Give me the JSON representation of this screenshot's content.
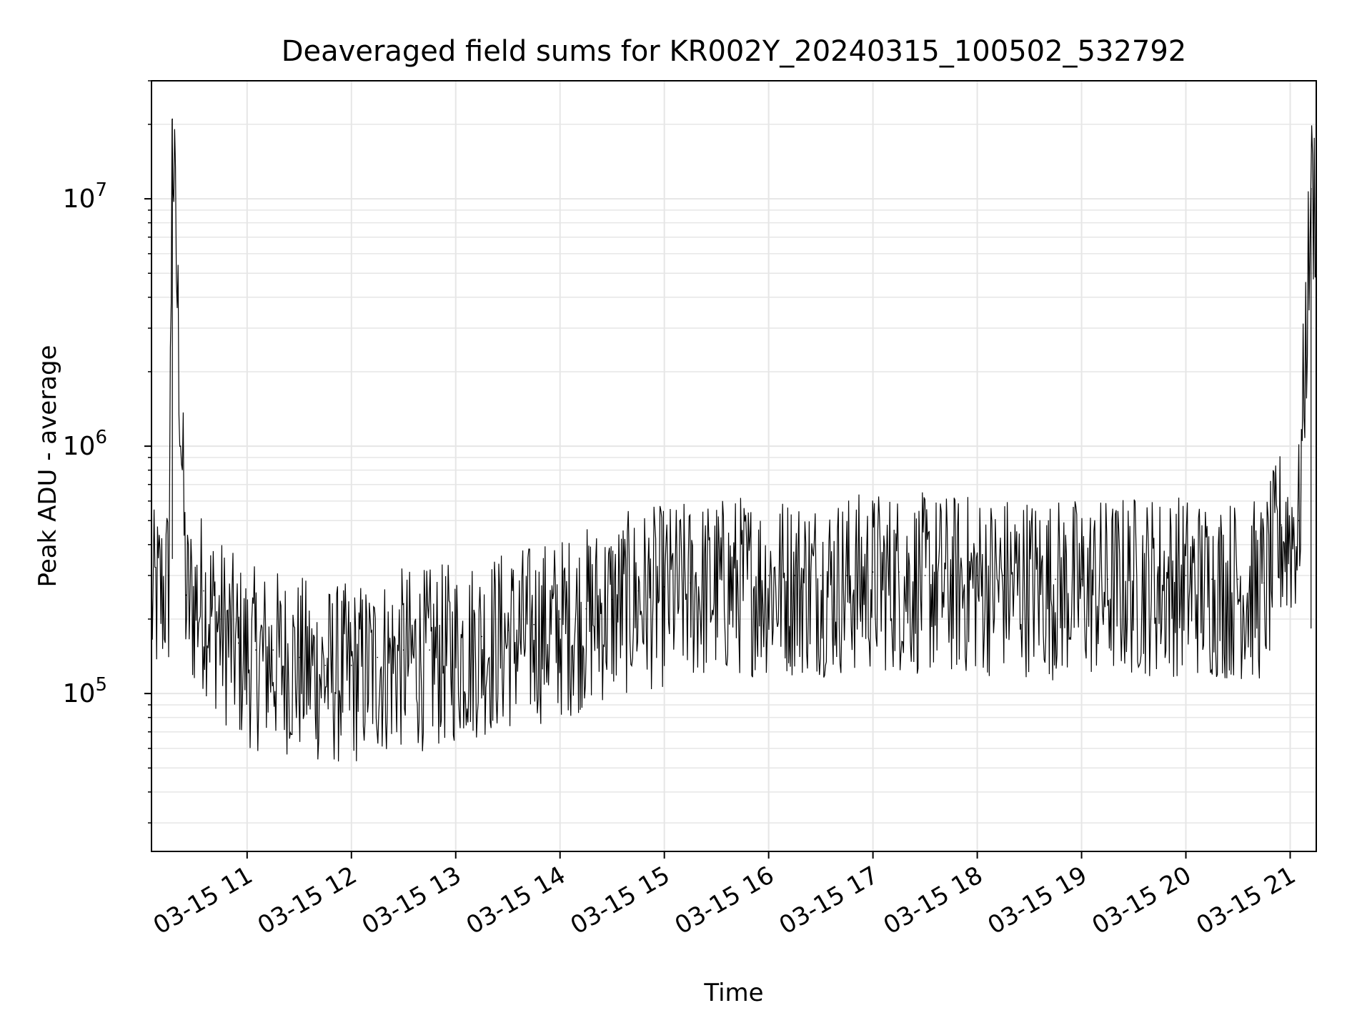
{
  "chart_data": {
    "type": "line",
    "title": "Deaveraged field sums for KR002Y_20240315_100502_532792",
    "xlabel": "Time",
    "ylabel": "Peak ADU - average",
    "yscale": "log",
    "ylim": [
      23000,
      30000000
    ],
    "xlim": [
      "2024-03-15 10:05",
      "2024-03-15 21:15"
    ],
    "xticks": [
      {
        "value": "2024-03-15 11:00",
        "label": "03-15 11"
      },
      {
        "value": "2024-03-15 12:00",
        "label": "03-15 12"
      },
      {
        "value": "2024-03-15 13:00",
        "label": "03-15 13"
      },
      {
        "value": "2024-03-15 14:00",
        "label": "03-15 14"
      },
      {
        "value": "2024-03-15 15:00",
        "label": "03-15 15"
      },
      {
        "value": "2024-03-15 16:00",
        "label": "03-15 16"
      },
      {
        "value": "2024-03-15 17:00",
        "label": "03-15 17"
      },
      {
        "value": "2024-03-15 18:00",
        "label": "03-15 18"
      },
      {
        "value": "2024-03-15 19:00",
        "label": "03-15 19"
      },
      {
        "value": "2024-03-15 20:00",
        "label": "03-15 20"
      },
      {
        "value": "2024-03-15 21:00",
        "label": "03-15 21"
      }
    ],
    "yticks": [
      {
        "value": 100000,
        "base": "10",
        "exp": "5"
      },
      {
        "value": 1000000,
        "base": "10",
        "exp": "6"
      },
      {
        "value": 10000000,
        "base": "10",
        "exp": "7"
      }
    ],
    "grid": true,
    "series_color": "#000000",
    "series": [
      {
        "x": [
          "2024-03-15 10:05",
          "2024-03-15 10:15",
          "2024-03-15 10:17",
          "2024-03-15 10:25",
          "2024-03-15 10:35",
          "2024-03-15 10:45",
          "2024-03-15 10:55",
          "2024-03-15 11:05",
          "2024-03-15 11:15",
          "2024-03-15 11:30",
          "2024-03-15 11:45",
          "2024-03-15 12:00",
          "2024-03-15 12:15",
          "2024-03-15 12:30",
          "2024-03-15 12:45",
          "2024-03-15 13:00",
          "2024-03-15 13:15",
          "2024-03-15 13:30",
          "2024-03-15 13:45",
          "2024-03-15 14:00",
          "2024-03-15 14:15",
          "2024-03-15 14:30",
          "2024-03-15 14:45",
          "2024-03-15 15:00",
          "2024-03-15 15:15",
          "2024-03-15 15:30",
          "2024-03-15 15:45",
          "2024-03-15 16:00",
          "2024-03-15 16:15",
          "2024-03-15 16:30",
          "2024-03-15 16:45",
          "2024-03-15 17:00",
          "2024-03-15 17:15",
          "2024-03-15 17:30",
          "2024-03-15 17:45",
          "2024-03-15 18:00",
          "2024-03-15 18:15",
          "2024-03-15 18:30",
          "2024-03-15 18:45",
          "2024-03-15 19:00",
          "2024-03-15 19:15",
          "2024-03-15 19:30",
          "2024-03-15 19:45",
          "2024-03-15 20:00",
          "2024-03-15 20:15",
          "2024-03-15 20:30",
          "2024-03-15 20:45",
          "2024-03-15 20:55",
          "2024-03-15 21:05",
          "2024-03-15 21:12"
        ],
        "y": [
          250000,
          300000,
          21000000,
          250000,
          260000,
          200000,
          160000,
          150000,
          150000,
          140000,
          130000,
          130000,
          140000,
          150000,
          150000,
          160000,
          170000,
          180000,
          190000,
          200000,
          220000,
          240000,
          260000,
          270000,
          280000,
          290000,
          300000,
          300000,
          300000,
          300000,
          300000,
          310000,
          310000,
          300000,
          300000,
          300000,
          300000,
          300000,
          290000,
          290000,
          290000,
          300000,
          300000,
          300000,
          290000,
          290000,
          280000,
          480000,
          500000,
          11000000
        ]
      }
    ]
  }
}
